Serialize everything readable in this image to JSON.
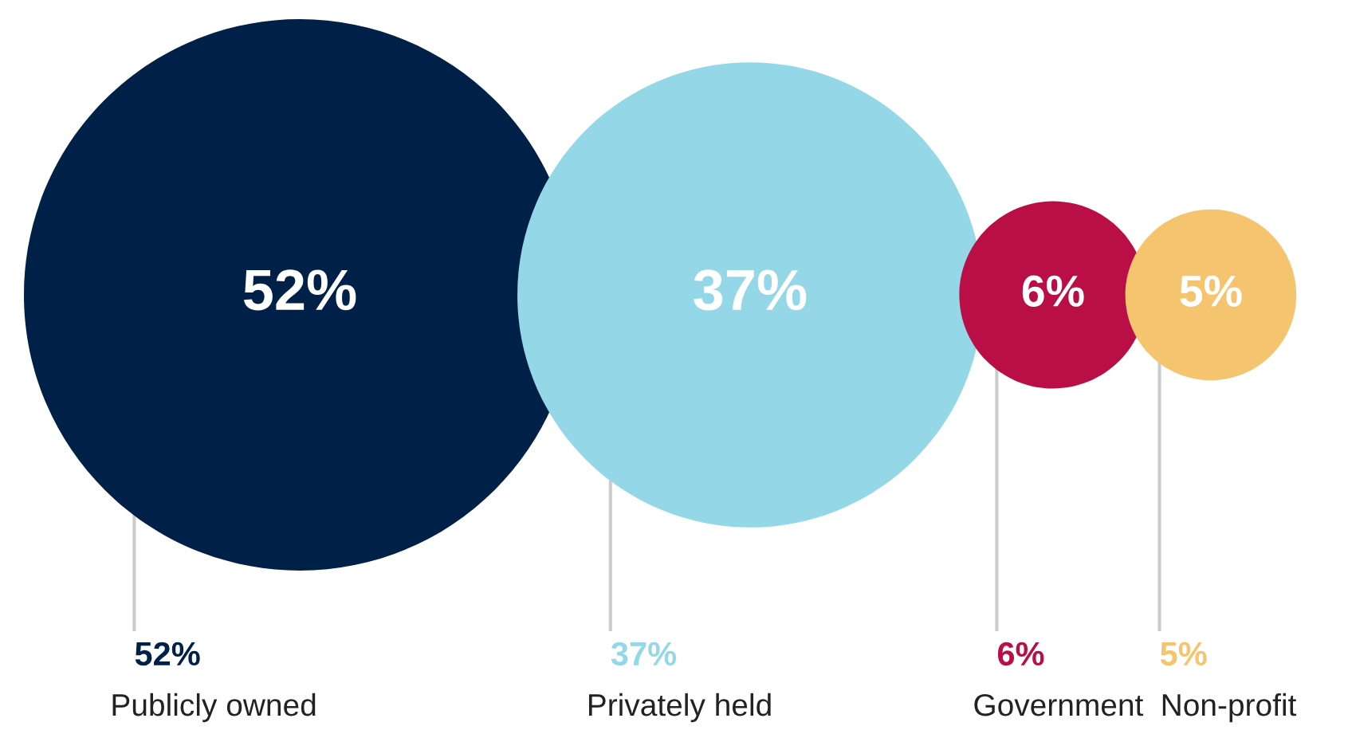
{
  "chart_data": {
    "type": "other",
    "categories": [
      "Publicly owned",
      "Privately held",
      "Government",
      "Non-profit"
    ],
    "values": [
      52,
      37,
      6,
      5
    ],
    "value_labels": [
      "52%",
      "37%",
      "6%",
      "5%"
    ],
    "colors": [
      "#002147",
      "#94d8e7",
      "#b90e46",
      "#f5c46e"
    ]
  }
}
